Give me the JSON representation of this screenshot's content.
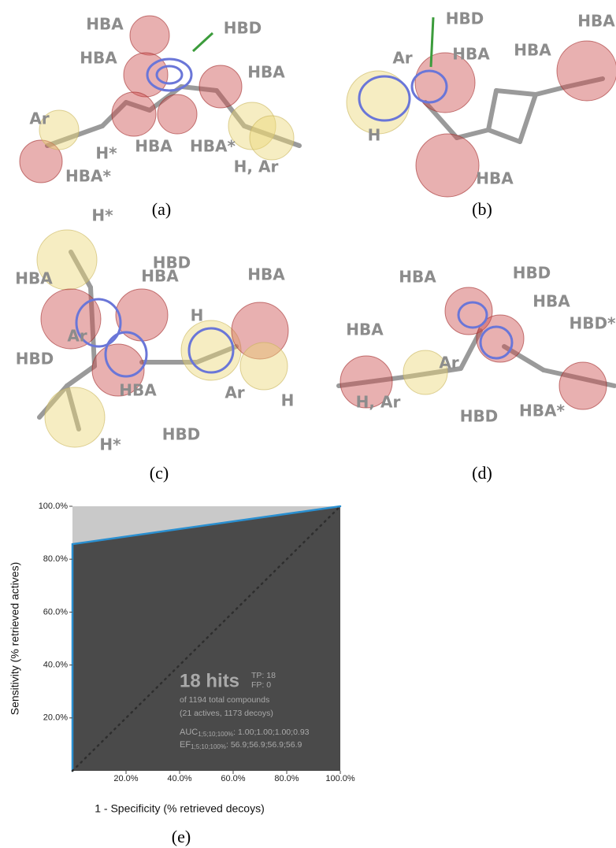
{
  "panels": [
    {
      "label": "(a)",
      "features": [
        "HBA",
        "HBD",
        "HBA",
        "HBA",
        "Ar",
        "HBA",
        "HBA*",
        "H*",
        "HBA*",
        "H, Ar"
      ]
    },
    {
      "label": "(b)",
      "features": [
        "HBD",
        "HBA",
        "Ar",
        "HBA",
        "HBA",
        "H",
        "HBA"
      ]
    },
    {
      "label": "(c)",
      "features": [
        "H*",
        "HBD",
        "HBA",
        "HBA",
        "HBA",
        "H",
        "Ar",
        "HBD",
        "HBA",
        "H",
        "Ar",
        "HBD",
        "H*"
      ]
    },
    {
      "label": "(d)",
      "features": [
        "HBD",
        "HBA",
        "HBA",
        "HBD*",
        "HBA",
        "Ar",
        "H, Ar",
        "HBD",
        "HBA*"
      ]
    }
  ],
  "chart_data": {
    "type": "roc",
    "caption": "(e)",
    "x_label": "1 - Specificity (% retrieved decoys)",
    "y_label": "Sensitivity (% retrieved actives)",
    "xlim": [
      0,
      100
    ],
    "ylim": [
      0,
      100
    ],
    "xticks": [
      {
        "value": 20,
        "label": "20.0%"
      },
      {
        "value": 40,
        "label": "40.0%"
      },
      {
        "value": 60,
        "label": "60.0%"
      },
      {
        "value": 80,
        "label": "80.0%"
      },
      {
        "value": 100,
        "label": "100.0%"
      }
    ],
    "yticks": [
      {
        "value": 20,
        "label": "20.0%"
      },
      {
        "value": 40,
        "label": "40.0%"
      },
      {
        "value": 60,
        "label": "60.0%"
      },
      {
        "value": 80,
        "label": "80.0%"
      },
      {
        "value": 100,
        "label": "100.0%"
      }
    ],
    "series": [
      {
        "color": "#2a8fd0",
        "style": "solid",
        "x": [
          0,
          0,
          100
        ],
        "values": [
          0,
          85.7,
          100
        ]
      },
      {
        "color": "#2e2e2e",
        "style": "dotted",
        "x": [
          0,
          100
        ],
        "values": [
          0,
          100
        ]
      }
    ],
    "annotations": {
      "hits": "18 hits",
      "tp": "TP: 18",
      "fp": "FP: 0",
      "total": "of 1194 total compounds",
      "split": "(21 actives, 1173 decoys)",
      "auc": {
        "label": "AUC",
        "sub": "1;5;10;100%",
        "text": ": 1.00;1.00;1.00;0.93"
      },
      "ef": {
        "label": "EF",
        "sub": "1;5;10;100%",
        "text": ": 56.9;56.9;56.9;56.9"
      }
    }
  }
}
